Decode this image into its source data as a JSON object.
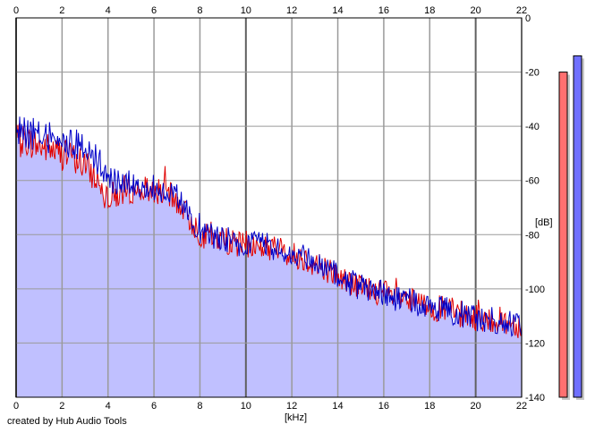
{
  "chart_data": {
    "type": "line",
    "title": "",
    "xlabel": "[kHz]",
    "ylabel": "[dB]",
    "xlim": [
      0,
      22
    ],
    "ylim": [
      -140,
      0
    ],
    "x_ticks": [
      0,
      2,
      4,
      6,
      8,
      10,
      12,
      14,
      16,
      18,
      20,
      22
    ],
    "y_ticks": [
      0,
      -20,
      -40,
      -60,
      -80,
      -100,
      -120,
      -140
    ],
    "grid": true,
    "area_fill": "#c0c0ff",
    "series": [
      {
        "color": "#e00000",
        "x": [
          0,
          0.5,
          1,
          1.5,
          2,
          2.5,
          3,
          3.5,
          4,
          4.5,
          5,
          5.5,
          6,
          6.5,
          7,
          7.5,
          8,
          8.5,
          9,
          9.5,
          10,
          10.5,
          11,
          11.5,
          12,
          12.5,
          13,
          13.5,
          14,
          14.5,
          15,
          15.5,
          16,
          16.5,
          17,
          17.5,
          18,
          18.5,
          19,
          19.5,
          20,
          20.5,
          21,
          21.5,
          22
        ],
        "values": [
          -45,
          -46,
          -48,
          -49,
          -51,
          -52,
          -55,
          -60,
          -66,
          -66,
          -64,
          -64,
          -64,
          -65,
          -68,
          -74,
          -80,
          -82,
          -82,
          -84,
          -84,
          -85,
          -85,
          -86,
          -88,
          -89,
          -91,
          -93,
          -96,
          -98,
          -100,
          -101,
          -102,
          -104,
          -105,
          -106,
          -107,
          -108,
          -109,
          -110,
          -111,
          -112,
          -112,
          -113,
          -114
        ]
      },
      {
        "color": "#0000c8",
        "x": [
          0,
          0.5,
          1,
          1.5,
          2,
          2.5,
          3,
          3.5,
          4,
          4.5,
          5,
          5.5,
          6,
          6.5,
          7,
          7.5,
          8,
          8.5,
          9,
          9.5,
          10,
          10.5,
          11,
          11.5,
          12,
          12.5,
          13,
          13.5,
          14,
          14.5,
          15,
          15.5,
          16,
          16.5,
          17,
          17.5,
          18,
          18.5,
          19,
          19.5,
          20,
          20.5,
          21,
          21.5,
          22
        ],
        "values": [
          -42,
          -43,
          -44,
          -45,
          -46,
          -47,
          -48,
          -53,
          -60,
          -62,
          -61,
          -62,
          -63,
          -64,
          -67,
          -73,
          -79,
          -81,
          -82,
          -83,
          -84,
          -84,
          -85,
          -86,
          -88,
          -89,
          -91,
          -93,
          -96,
          -98,
          -100,
          -101,
          -102,
          -104,
          -105,
          -106,
          -107,
          -108,
          -109,
          -110,
          -111,
          -112,
          -112,
          -113,
          -114
        ]
      }
    ],
    "meters": [
      {
        "color": "#ff7070",
        "value": -20
      },
      {
        "color": "#7070ff",
        "value": -14
      }
    ]
  },
  "footer": {
    "credit": "created by Hub Audio Tools"
  }
}
